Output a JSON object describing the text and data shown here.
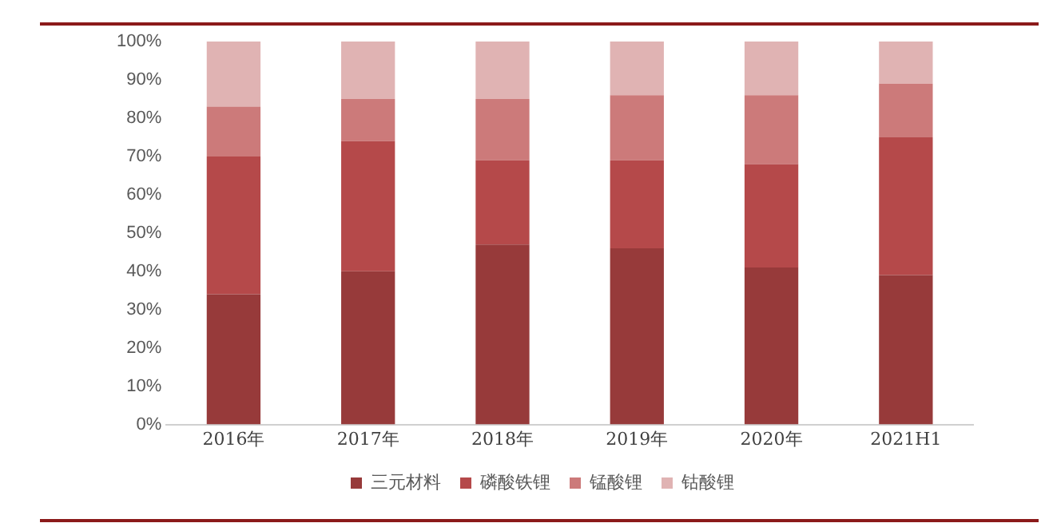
{
  "chart_data": {
    "type": "bar",
    "stacked": true,
    "categories": [
      "2016年",
      "2017年",
      "2018年",
      "2019年",
      "2020年",
      "2021H1"
    ],
    "series": [
      {
        "name": "三元材料",
        "color": "#973a3a",
        "values": [
          34,
          40,
          47,
          46,
          41,
          39
        ]
      },
      {
        "name": "磷酸铁锂",
        "color": "#b5494a",
        "values": [
          36,
          34,
          22,
          23,
          27,
          36
        ]
      },
      {
        "name": "锰酸锂",
        "color": "#cc7a7a",
        "values": [
          13,
          11,
          16,
          17,
          18,
          14
        ]
      },
      {
        "name": "钴酸锂",
        "color": "#e0b3b3",
        "values": [
          17,
          15,
          15,
          14,
          14,
          11
        ]
      }
    ],
    "ylim": [
      0,
      100
    ],
    "yticks": [
      {
        "value": 0,
        "label": "0%"
      },
      {
        "value": 10,
        "label": "10%"
      },
      {
        "value": 20,
        "label": "20%"
      },
      {
        "value": 30,
        "label": "30%"
      },
      {
        "value": 40,
        "label": "40%"
      },
      {
        "value": 50,
        "label": "50%"
      },
      {
        "value": 60,
        "label": "60%"
      },
      {
        "value": 70,
        "label": "70%"
      },
      {
        "value": 80,
        "label": "80%"
      },
      {
        "value": 90,
        "label": "90%"
      },
      {
        "value": 100,
        "label": "100%"
      }
    ],
    "grid": false,
    "legend": "bottom"
  }
}
